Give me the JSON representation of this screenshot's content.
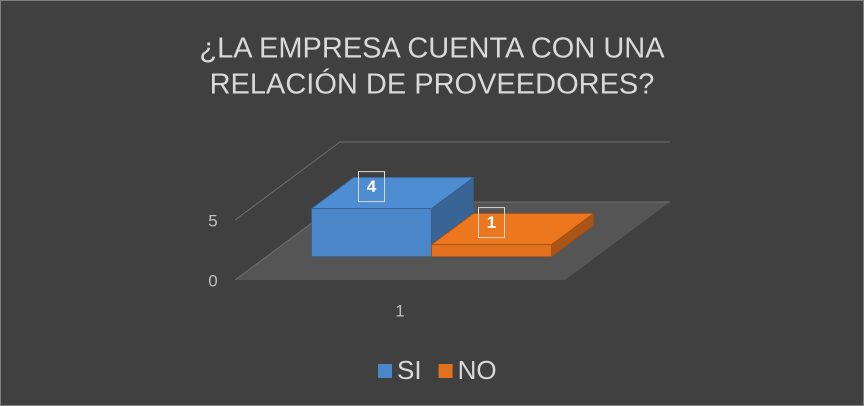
{
  "chart_data": {
    "type": "bar3d",
    "title": [
      "¿LA EMPRESA CUENTA CON UNA",
      "RELACIÓN DE PROVEEDORES?"
    ],
    "categories": [
      "1"
    ],
    "series": [
      {
        "name": "SI",
        "color": "#4a86c8",
        "values": [
          4
        ]
      },
      {
        "name": "NO",
        "color": "#e2711d",
        "values": [
          1
        ]
      }
    ],
    "ylim": [
      0,
      5
    ],
    "yticks": [
      0,
      5
    ],
    "grid": true,
    "legend": "bottom"
  }
}
